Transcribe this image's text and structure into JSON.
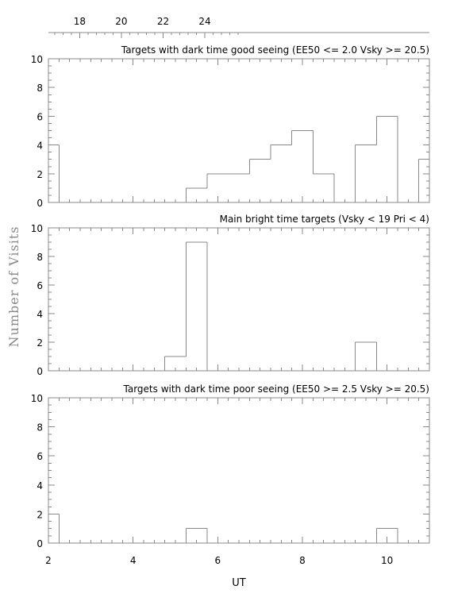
{
  "chart_data": {
    "type": "histogram",
    "xlabel": "UT",
    "ylabel": "Number of Visits",
    "bin_width": 0.5,
    "x_bottom": {
      "range": [
        2,
        11
      ],
      "ticks": [
        2,
        4,
        6,
        8,
        10
      ],
      "tick_labels": [
        "2",
        "4",
        "6",
        "8",
        "10"
      ]
    },
    "x_top": {
      "ticks": [
        18,
        20,
        22,
        24
      ],
      "tick_labels": [
        "18",
        "20",
        "22",
        "24"
      ]
    },
    "colors": {
      "line": "#888888",
      "axis": "#888888"
    },
    "panels": [
      {
        "title": "Targets with dark time good seeing (EE50 <= 2.0 Vsky >= 20.5)",
        "ylim": [
          0,
          10
        ],
        "yticks": [
          0,
          2,
          4,
          6,
          8,
          10
        ],
        "ytick_labels": [
          "0",
          "2",
          "4",
          "6",
          "8",
          "10"
        ],
        "bin_edges": [
          2.0,
          2.25,
          4.75,
          5.25,
          5.75,
          6.75,
          7.25,
          7.75,
          8.25,
          8.75,
          9.25,
          9.75,
          10.25,
          10.75,
          11.0
        ],
        "counts": [
          4,
          0,
          0,
          1,
          2,
          3,
          4,
          5,
          2,
          0,
          4,
          6,
          0,
          3
        ]
      },
      {
        "title": "Main bright time targets (Vsky < 19 Pri < 4)",
        "ylim": [
          0,
          10
        ],
        "yticks": [
          0,
          2,
          4,
          6,
          8,
          10
        ],
        "ytick_labels": [
          "0",
          "2",
          "4",
          "6",
          "8",
          "10"
        ],
        "bin_edges": [
          2.0,
          4.75,
          5.25,
          5.75,
          9.25,
          9.75,
          11.0
        ],
        "counts": [
          0,
          1,
          9,
          0,
          2,
          0
        ]
      },
      {
        "title": "Targets with dark time poor seeing (EE50 >= 2.5 Vsky >= 20.5)",
        "ylim": [
          0,
          10
        ],
        "yticks": [
          0,
          2,
          4,
          6,
          8,
          10
        ],
        "ytick_labels": [
          "0",
          "2",
          "4",
          "6",
          "8",
          "10"
        ],
        "bin_edges": [
          2.0,
          2.25,
          5.25,
          5.75,
          9.75,
          10.25,
          11.0
        ],
        "counts": [
          2,
          0,
          1,
          0,
          1,
          0
        ]
      }
    ]
  }
}
